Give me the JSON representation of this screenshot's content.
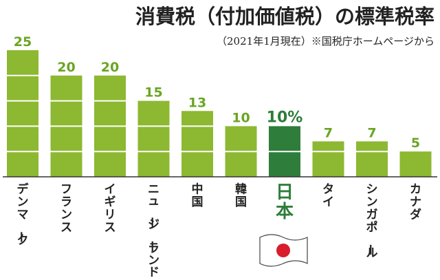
{
  "chart_data": {
    "type": "bar",
    "title": "消費税（付加価値税）の標準税率",
    "subtitle": "（2021年1月現在）※国税庁ホームページから",
    "categories": [
      "デンマーク",
      "フランス",
      "イギリス",
      "ニュージーランド",
      "中国",
      "韓国",
      "日本",
      "タイ",
      "シンガポール",
      "カナダ"
    ],
    "values": [
      25,
      20,
      20,
      15,
      13,
      10,
      10,
      7,
      7,
      5
    ],
    "value_labels": [
      "25",
      "20",
      "20",
      "15",
      "13",
      "10",
      "10%",
      "7",
      "7",
      "5"
    ],
    "highlight_index": 6,
    "ylim": [
      0,
      25
    ],
    "grid": false,
    "colors": {
      "bar": "#8db832",
      "bar_highlight": "#2e7d3a",
      "value_text": "#6aa523",
      "value_text_highlight": "#2e7d3a",
      "category_text": "#222222",
      "category_text_highlight": "#2e7d3a",
      "separator": "#ffffff",
      "baseline": "#333333",
      "title": "#222222",
      "flag_red": "#d81e2c"
    }
  }
}
